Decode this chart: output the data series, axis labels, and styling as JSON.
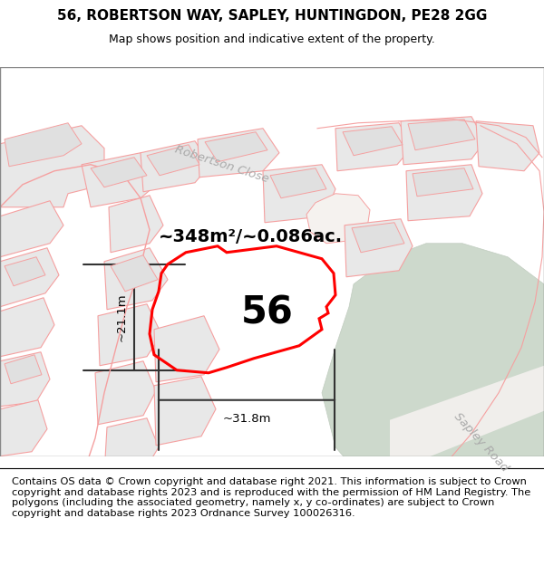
{
  "title_line1": "56, ROBERTSON WAY, SAPLEY, HUNTINGDON, PE28 2GG",
  "title_line2": "Map shows position and indicative extent of the property.",
  "footer_text": "Contains OS data © Crown copyright and database right 2021. This information is subject to Crown copyright and database rights 2023 and is reproduced with the permission of HM Land Registry. The polygons (including the associated geometry, namely x, y co-ordinates) are subject to Crown copyright and database rights 2023 Ordnance Survey 100026316.",
  "area_label": "~348m²/~0.086ac.",
  "number_label": "56",
  "width_label": "~31.8m",
  "height_label": "~21.1m",
  "map_bg": "#ffffff",
  "green_fill": "#cdd9cc",
  "green_edge": "#c0ccbf",
  "property_color": "#ff0000",
  "plot_edge": "#f5a0a0",
  "plot_fill": "#e8e8e8",
  "road_label_color": "#aaaaaa",
  "dim_color": "#333333",
  "title_fontsize": 11,
  "label_fontsize": 14,
  "footer_fontsize": 8.2,
  "number_fontsize": 30
}
